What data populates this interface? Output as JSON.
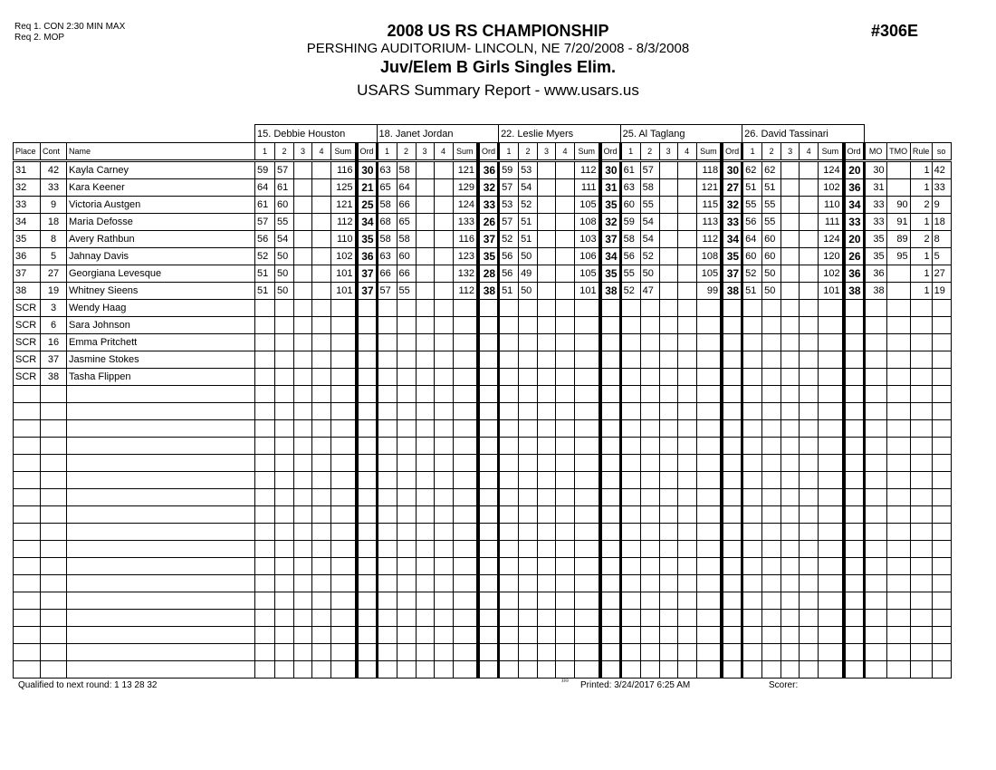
{
  "requirements": [
    "Req  1.  CON 2:30 MIN MAX",
    "Req  2.  MOP"
  ],
  "title": "2008 US RS CHAMPIONSHIP",
  "venue": "PERSHING AUDITORIUM- LINCOLN, NE  7/20/2008 - 8/3/2008",
  "event": "Juv/Elem B Girls Singles Elim.",
  "report": "USARS Summary Report - www.usars.us",
  "event_number": "#306E",
  "columns": {
    "place": "Place",
    "cont": "Cont",
    "name": "Name",
    "judge_cols": [
      "1",
      "2",
      "3",
      "4",
      "Sum",
      "Ord"
    ],
    "mo": "MO",
    "tmo": "TMO",
    "rule": "Rule",
    "so": "so"
  },
  "judges": [
    "15.  Debbie Houston",
    "18.  Janet Jordan",
    "22.  Leslie  Myers",
    "25.  Al Taglang",
    "26.  David Tassinari"
  ],
  "rows": [
    {
      "place": "31",
      "cont": "42",
      "name": "Kayla Carney",
      "scores": [
        [
          "59",
          "57",
          "116",
          "30"
        ],
        [
          "63",
          "58",
          "121",
          "36"
        ],
        [
          "59",
          "53",
          "112",
          "30"
        ],
        [
          "61",
          "57",
          "118",
          "30"
        ],
        [
          "62",
          "62",
          "124",
          "20"
        ]
      ],
      "mo": "30",
      "tmo": "",
      "rule": "1",
      "so": "42"
    },
    {
      "place": "32",
      "cont": "33",
      "name": "Kara Keener",
      "scores": [
        [
          "64",
          "61",
          "125",
          "21"
        ],
        [
          "65",
          "64",
          "129",
          "32"
        ],
        [
          "57",
          "54",
          "111",
          "31"
        ],
        [
          "63",
          "58",
          "121",
          "27"
        ],
        [
          "51",
          "51",
          "102",
          "36"
        ]
      ],
      "mo": "31",
      "tmo": "",
      "rule": "1",
      "so": "33"
    },
    {
      "place": "33",
      "cont": "9",
      "name": "Victoria Austgen",
      "scores": [
        [
          "61",
          "60",
          "121",
          "25"
        ],
        [
          "58",
          "66",
          "124",
          "33"
        ],
        [
          "53",
          "52",
          "105",
          "35"
        ],
        [
          "60",
          "55",
          "115",
          "32"
        ],
        [
          "55",
          "55",
          "110",
          "34"
        ]
      ],
      "mo": "33",
      "tmo": "90",
      "rule": "2",
      "so": "9"
    },
    {
      "place": "34",
      "cont": "18",
      "name": "Maria Defosse",
      "scores": [
        [
          "57",
          "55",
          "112",
          "34"
        ],
        [
          "68",
          "65",
          "133",
          "26"
        ],
        [
          "57",
          "51",
          "108",
          "32"
        ],
        [
          "59",
          "54",
          "113",
          "33"
        ],
        [
          "56",
          "55",
          "111",
          "33"
        ]
      ],
      "mo": "33",
      "tmo": "91",
      "rule": "1",
      "so": "18"
    },
    {
      "place": "35",
      "cont": "8",
      "name": "Avery Rathbun",
      "scores": [
        [
          "56",
          "54",
          "110",
          "35"
        ],
        [
          "58",
          "58",
          "116",
          "37"
        ],
        [
          "52",
          "51",
          "103",
          "37"
        ],
        [
          "58",
          "54",
          "112",
          "34"
        ],
        [
          "64",
          "60",
          "124",
          "20"
        ]
      ],
      "mo": "35",
      "tmo": "89",
      "rule": "2",
      "so": "8"
    },
    {
      "place": "36",
      "cont": "5",
      "name": "Jahnay Davis",
      "scores": [
        [
          "52",
          "50",
          "102",
          "36"
        ],
        [
          "63",
          "60",
          "123",
          "35"
        ],
        [
          "56",
          "50",
          "106",
          "34"
        ],
        [
          "56",
          "52",
          "108",
          "35"
        ],
        [
          "60",
          "60",
          "120",
          "26"
        ]
      ],
      "mo": "35",
      "tmo": "95",
      "rule": "1",
      "so": "5"
    },
    {
      "place": "37",
      "cont": "27",
      "name": "Georgiana Levesque",
      "scores": [
        [
          "51",
          "50",
          "101",
          "37"
        ],
        [
          "66",
          "66",
          "132",
          "28"
        ],
        [
          "56",
          "49",
          "105",
          "35"
        ],
        [
          "55",
          "50",
          "105",
          "37"
        ],
        [
          "52",
          "50",
          "102",
          "36"
        ]
      ],
      "mo": "36",
      "tmo": "",
      "rule": "1",
      "so": "27"
    },
    {
      "place": "38",
      "cont": "19",
      "name": "Whitney Sieens",
      "scores": [
        [
          "51",
          "50",
          "101",
          "37"
        ],
        [
          "57",
          "55",
          "112",
          "38"
        ],
        [
          "51",
          "50",
          "101",
          "38"
        ],
        [
          "52",
          "47",
          "99",
          "38"
        ],
        [
          "51",
          "50",
          "101",
          "38"
        ]
      ],
      "mo": "38",
      "tmo": "",
      "rule": "1",
      "so": "19"
    },
    {
      "place": "SCR",
      "cont": "3",
      "name": "Wendy Haag"
    },
    {
      "place": "SCR",
      "cont": "6",
      "name": "Sara Johnson"
    },
    {
      "place": "SCR",
      "cont": "16",
      "name": "Emma Pritchett"
    },
    {
      "place": "SCR",
      "cont": "37",
      "name": "Jasmine Stokes"
    },
    {
      "place": "SCR",
      "cont": "38",
      "name": "Tasha Flippen"
    }
  ],
  "footer": {
    "qualified": "Qualified to next round:   1 13 28 32",
    "code": "ᵌᵌᶦᵌ",
    "printed": "Printed:  3/24/2017  6:25 AM",
    "scorer": "Scorer:"
  }
}
